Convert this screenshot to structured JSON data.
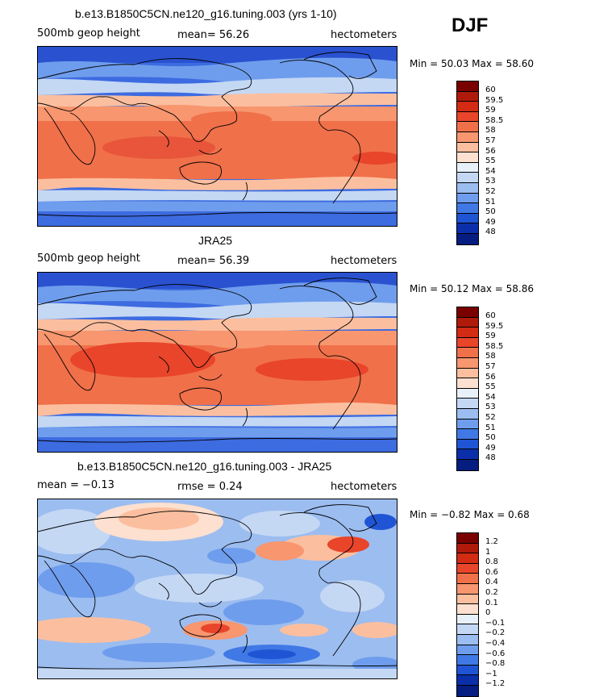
{
  "season": "DJF",
  "panels": [
    {
      "title": "b.e13.B1850C5CN.ne120_g16.tuning.003 (yrs 1-10)",
      "left_label": "500mb geop height",
      "center_label": "mean=  56.26",
      "right_label": "hectometers",
      "minmax": "Min =  50.03  Max =  58.60",
      "colorbar_labels": [
        "60",
        "59.5",
        "59",
        "58.5",
        "58",
        "57",
        "56",
        "55",
        "54",
        "53",
        "52",
        "51",
        "50",
        "49",
        "48"
      ],
      "colors": [
        "#7a0000",
        "#b01a0a",
        "#d32b14",
        "#e8452b",
        "#f0704a",
        "#f7966f",
        "#fbbf9f",
        "#fde0cf",
        "#e8f0fa",
        "#c4d8f4",
        "#9cbdf0",
        "#6f9ded",
        "#4079e6",
        "#1f55d4",
        "#0b2faa",
        "#051c80"
      ]
    },
    {
      "title": "JRA25",
      "left_label": "500mb geop height",
      "center_label": "mean=  56.39",
      "right_label": "hectometers",
      "minmax": "Min =  50.12  Max =  58.86",
      "colorbar_labels": [
        "60",
        "59.5",
        "59",
        "58.5",
        "58",
        "57",
        "56",
        "55",
        "54",
        "53",
        "52",
        "51",
        "50",
        "49",
        "48"
      ],
      "colors": [
        "#7a0000",
        "#b01a0a",
        "#d32b14",
        "#e8452b",
        "#f0704a",
        "#f7966f",
        "#fbbf9f",
        "#fde0cf",
        "#e8f0fa",
        "#c4d8f4",
        "#9cbdf0",
        "#6f9ded",
        "#4079e6",
        "#1f55d4",
        "#0b2faa",
        "#051c80"
      ]
    },
    {
      "title": "b.e13.B1850C5CN.ne120_g16.tuning.003 - JRA25",
      "left_label": "mean =  −0.13",
      "center_label": "rmse =   0.24",
      "right_label": "hectometers",
      "minmax": "Min =  −0.82  Max =   0.68",
      "colorbar_labels": [
        "1.2",
        "1",
        "0.8",
        "0.6",
        "0.4",
        "0.2",
        "0.1",
        "0",
        "−0.1",
        "−0.2",
        "−0.4",
        "−0.6",
        "−0.8",
        "−1",
        "−1.2"
      ],
      "colors": [
        "#7a0000",
        "#b01a0a",
        "#d32b14",
        "#e8452b",
        "#f0704a",
        "#f7966f",
        "#fbbf9f",
        "#fde0cf",
        "#e8f0fa",
        "#c4d8f4",
        "#9cbdf0",
        "#6f9ded",
        "#4079e6",
        "#1f55d4",
        "#0b2faa",
        "#051c80"
      ]
    }
  ]
}
